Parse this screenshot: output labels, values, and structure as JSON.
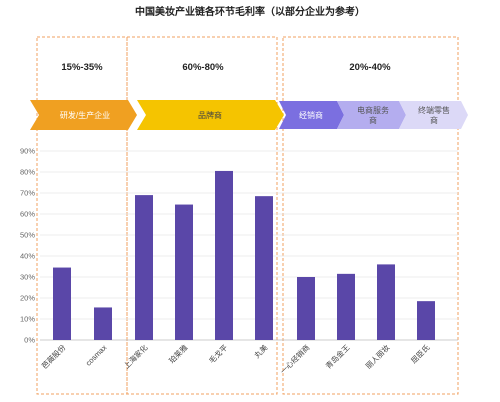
{
  "chart_data": {
    "type": "bar",
    "title": "中国美妆产业链各环节毛利率（以部分企业为参考）",
    "xlabel": "",
    "ylabel": "",
    "ylim": [
      0,
      90
    ],
    "yticks": [
      "0%",
      "10%",
      "20%",
      "30%",
      "40%",
      "50%",
      "60%",
      "70%",
      "80%",
      "90%"
    ],
    "grid": true,
    "colors": {
      "bar": "#5a47a8",
      "orange_arrow": "#f0a021",
      "yellow_arrow": "#f5c400",
      "purple_arrows": [
        "#7b6fe0",
        "#b4adef",
        "#dcd9f7"
      ],
      "group_border": "#f0a060"
    },
    "groups": [
      {
        "range": "15%-35%",
        "stage": [
          "研发/生产企业"
        ],
        "categories": [
          "芭薇股份",
          "cosmax"
        ],
        "values": [
          34.5,
          15.5
        ]
      },
      {
        "range": "60%-80%",
        "stage": [
          "品牌商"
        ],
        "categories": [
          "上海家化",
          "珀莱雅",
          "毛戈平",
          "丸美"
        ],
        "values": [
          69,
          64.5,
          80.5,
          68.5
        ]
      },
      {
        "range": "20%-40%",
        "stage": [
          "经销商",
          "电商服务",
          "商",
          "终端零售",
          "商"
        ],
        "categories": [
          "一心经销商",
          "青岛金王",
          "丽人丽妆",
          "屈臣氏"
        ],
        "values": [
          30,
          31.5,
          36,
          18.5
        ]
      }
    ]
  }
}
